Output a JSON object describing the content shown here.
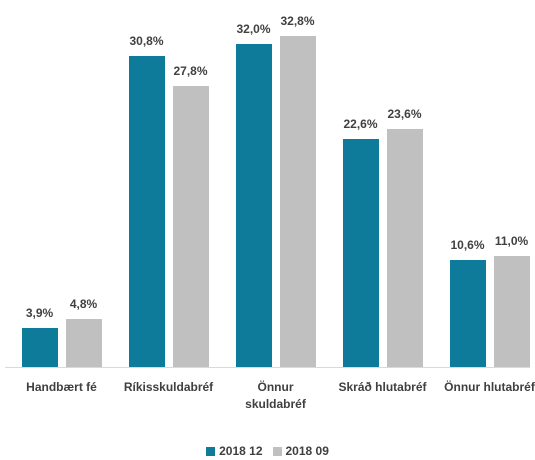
{
  "chart_data": {
    "type": "bar",
    "categories": [
      "Handbært fé",
      "Ríkisskuldabréf",
      "Önnur skuldabréf",
      "Skráð hlutabréf",
      "Önnur hlutabréf"
    ],
    "series": [
      {
        "name": "2018 12",
        "color": "#0f7b9b",
        "values": [
          3.9,
          30.8,
          32.0,
          22.6,
          10.6
        ],
        "value_labels": [
          "3,9%",
          "30,8%",
          "32,0%",
          "22,6%",
          "10,6%"
        ]
      },
      {
        "name": "2018 09",
        "color": "#c0c0c0",
        "values": [
          4.8,
          27.8,
          32.8,
          23.6,
          11.0
        ],
        "value_labels": [
          "4,8%",
          "27,8%",
          "32,8%",
          "23,6%",
          "11,0%"
        ]
      }
    ]
  }
}
